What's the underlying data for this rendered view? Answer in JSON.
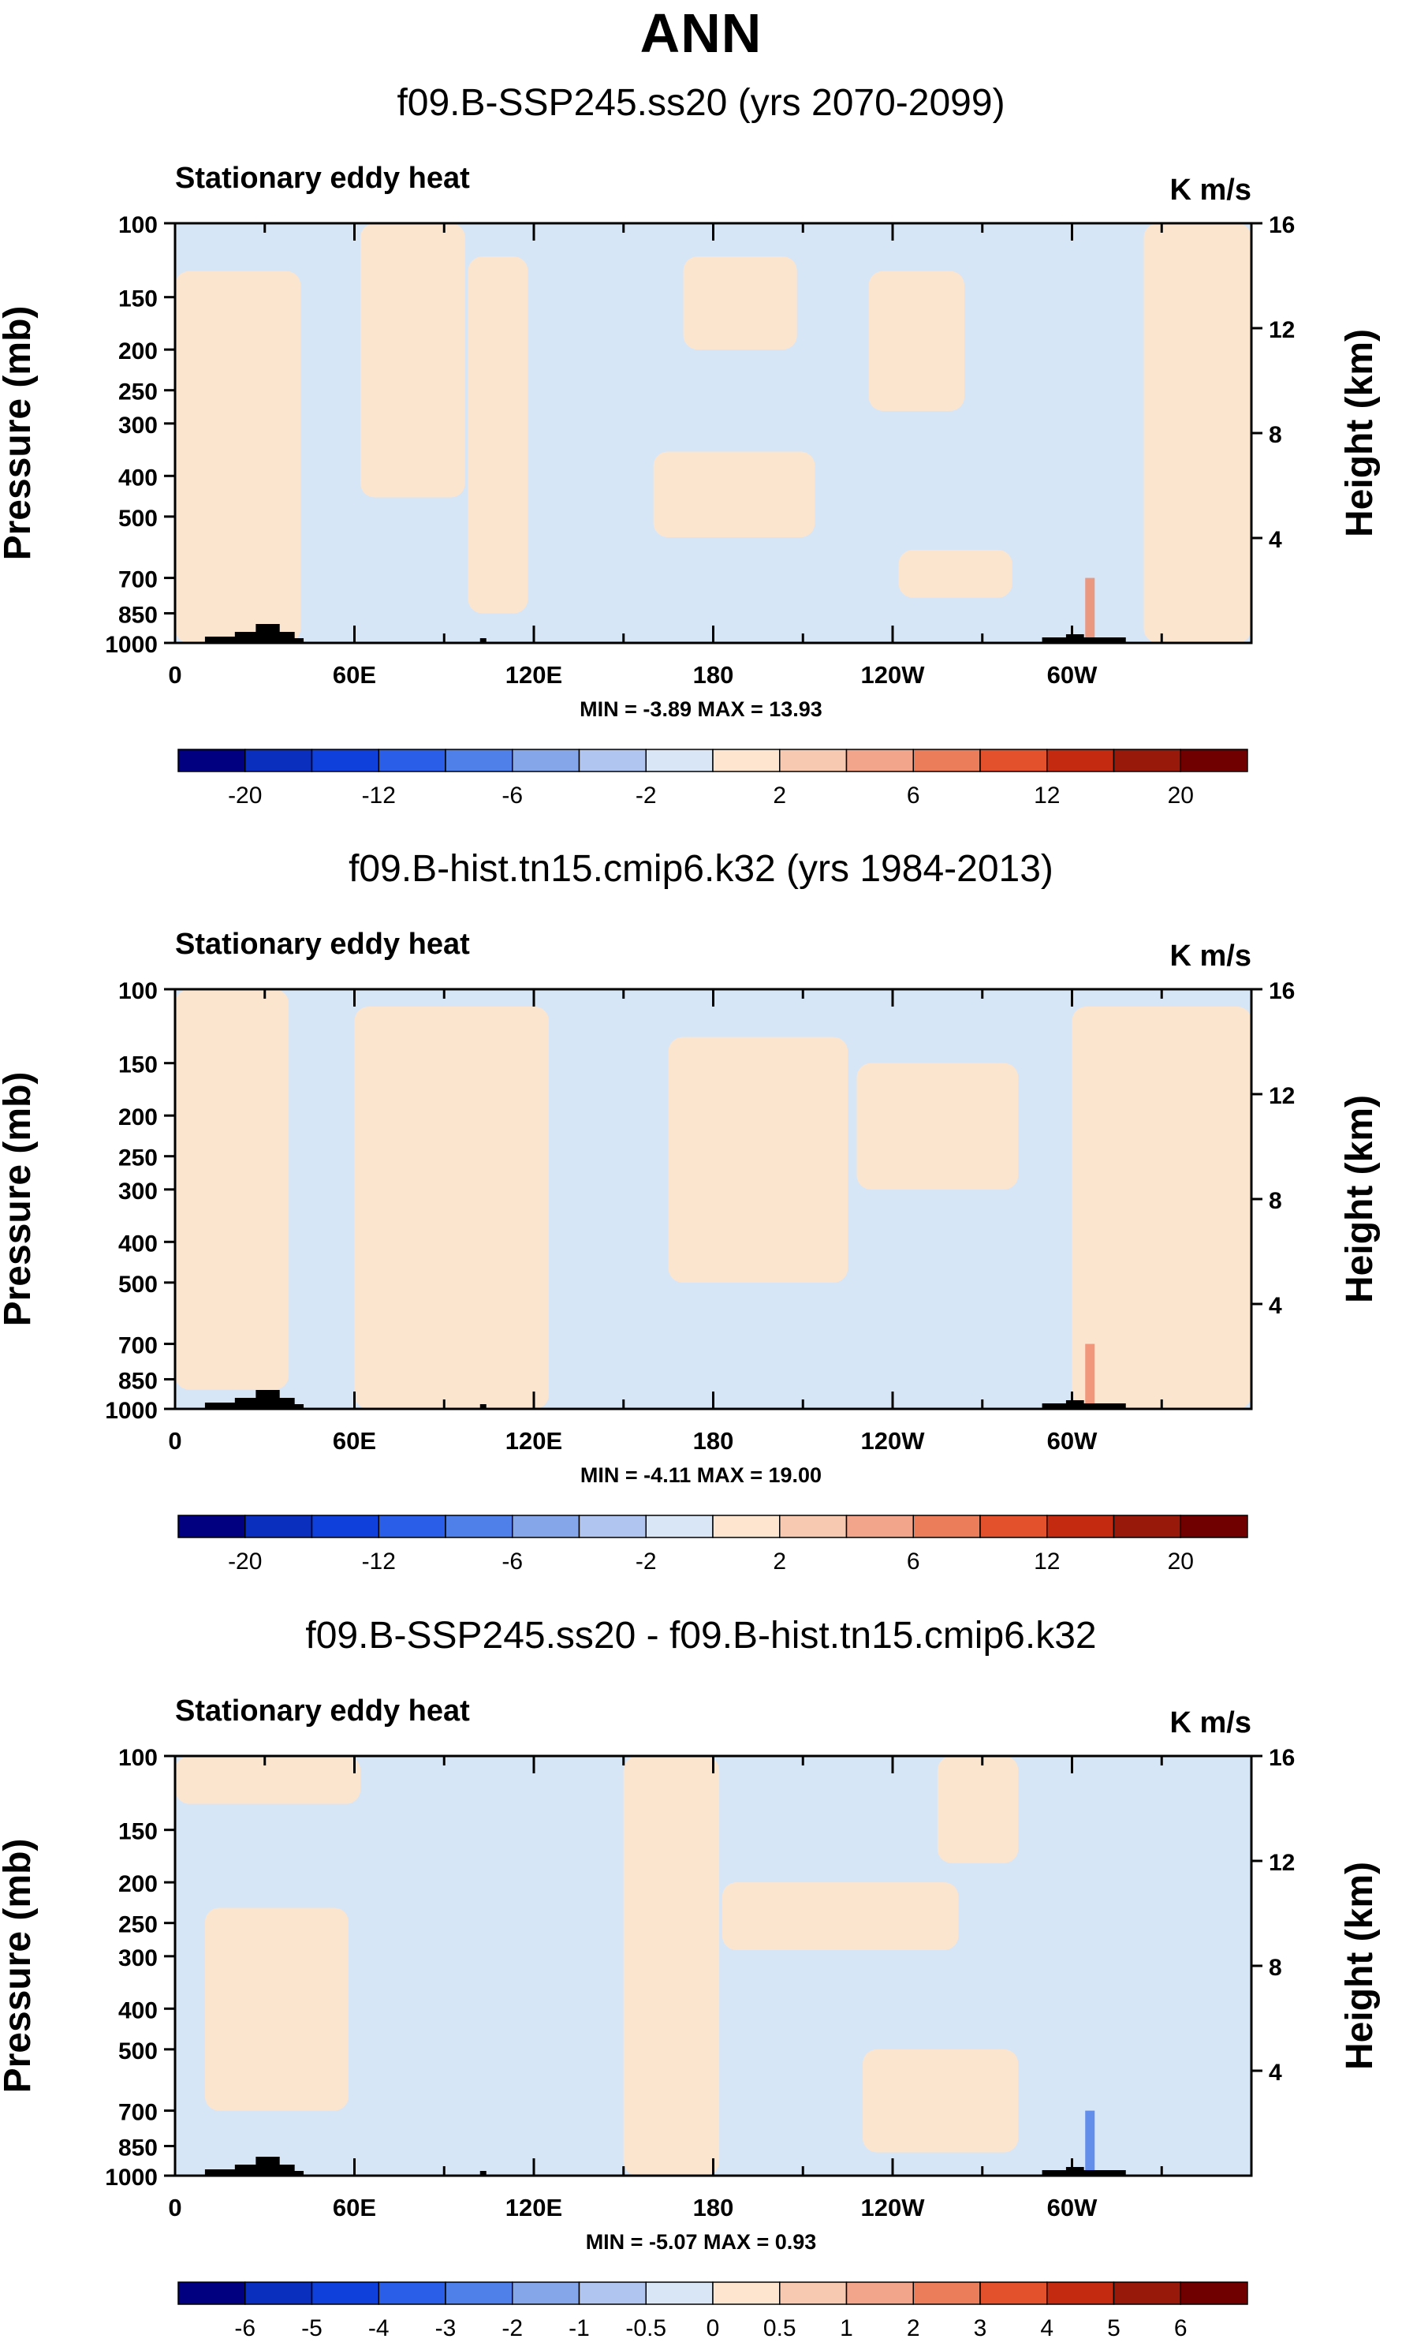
{
  "figure": {
    "title": "ANN"
  },
  "chart_data": [
    {
      "type": "heatmap",
      "title": "f09.B-SSP245.ss20 (yrs 2070-2099)",
      "subtitle": "Stationary eddy heat",
      "units": "K m/s",
      "ylabel": "Pressure (mb)",
      "ylabel_right": "Height (km)",
      "pressure_ticks": [
        100,
        150,
        200,
        250,
        300,
        400,
        500,
        700,
        850,
        1000
      ],
      "height_ticks": [
        4,
        8,
        12,
        16
      ],
      "xlim": [
        0,
        360
      ],
      "x_ticks": [
        {
          "lon": 0,
          "label": "0"
        },
        {
          "lon": 60,
          "label": "60E"
        },
        {
          "lon": 120,
          "label": "120E"
        },
        {
          "lon": 180,
          "label": "180"
        },
        {
          "lon": 240,
          "label": "120W"
        },
        {
          "lon": 300,
          "label": "60W"
        }
      ],
      "stats": "MIN = -3.89  MAX = 13.93",
      "colorbar_labels": [
        "-20",
        "-12",
        "-6",
        "-2",
        "2",
        "6",
        "12",
        "20"
      ],
      "positive_regions": [
        {
          "lon": [
            0,
            42
          ],
          "p": [
            130,
            1000
          ]
        },
        {
          "lon": [
            62,
            97
          ],
          "p": [
            100,
            450
          ]
        },
        {
          "lon": [
            98,
            118
          ],
          "p": [
            120,
            850
          ]
        },
        {
          "lon": [
            160,
            214
          ],
          "p": [
            350,
            560
          ]
        },
        {
          "lon": [
            170,
            208
          ],
          "p": [
            120,
            200
          ]
        },
        {
          "lon": [
            232,
            264
          ],
          "p": [
            130,
            280
          ]
        },
        {
          "lon": [
            242,
            280
          ],
          "p": [
            600,
            780
          ]
        },
        {
          "lon": [
            324,
            360
          ],
          "p": [
            100,
            1000
          ]
        }
      ]
    },
    {
      "type": "heatmap",
      "title": "f09.B-hist.tn15.cmip6.k32 (yrs 1984-2013)",
      "subtitle": "Stationary eddy heat",
      "units": "K m/s",
      "ylabel": "Pressure (mb)",
      "ylabel_right": "Height (km)",
      "pressure_ticks": [
        100,
        150,
        200,
        250,
        300,
        400,
        500,
        700,
        850,
        1000
      ],
      "height_ticks": [
        4,
        8,
        12,
        16
      ],
      "xlim": [
        0,
        360
      ],
      "x_ticks": [
        {
          "lon": 0,
          "label": "0"
        },
        {
          "lon": 60,
          "label": "60E"
        },
        {
          "lon": 120,
          "label": "120E"
        },
        {
          "lon": 180,
          "label": "180"
        },
        {
          "lon": 240,
          "label": "120W"
        },
        {
          "lon": 300,
          "label": "60W"
        }
      ],
      "stats": "MIN = -4.11  MAX = 19.00",
      "colorbar_labels": [
        "-20",
        "-12",
        "-6",
        "-2",
        "2",
        "6",
        "12",
        "20"
      ],
      "positive_regions": [
        {
          "lon": [
            0,
            38
          ],
          "p": [
            100,
            900
          ]
        },
        {
          "lon": [
            60,
            125
          ],
          "p": [
            110,
            1000
          ]
        },
        {
          "lon": [
            165,
            225
          ],
          "p": [
            130,
            500
          ]
        },
        {
          "lon": [
            228,
            282
          ],
          "p": [
            150,
            300
          ]
        },
        {
          "lon": [
            300,
            360
          ],
          "p": [
            110,
            1000
          ]
        }
      ]
    },
    {
      "type": "heatmap",
      "title": "f09.B-SSP245.ss20 - f09.B-hist.tn15.cmip6.k32",
      "subtitle": "Stationary eddy heat",
      "units": "K m/s",
      "ylabel": "Pressure (mb)",
      "ylabel_right": "Height (km)",
      "pressure_ticks": [
        100,
        150,
        200,
        250,
        300,
        400,
        500,
        700,
        850,
        1000
      ],
      "height_ticks": [
        4,
        8,
        12,
        16
      ],
      "xlim": [
        0,
        360
      ],
      "x_ticks": [
        {
          "lon": 0,
          "label": "0"
        },
        {
          "lon": 60,
          "label": "60E"
        },
        {
          "lon": 120,
          "label": "120E"
        },
        {
          "lon": 180,
          "label": "180"
        },
        {
          "lon": 240,
          "label": "120W"
        },
        {
          "lon": 300,
          "label": "60W"
        }
      ],
      "stats": "MIN = -5.07  MAX =  0.93",
      "colorbar_labels": [
        "-6",
        "-5",
        "-4",
        "-3",
        "-2",
        "-1",
        "-0.5",
        "0",
        "0.5",
        "1",
        "2",
        "3",
        "4",
        "5",
        "6"
      ],
      "positive_regions": [
        {
          "lon": [
            0,
            62
          ],
          "p": [
            100,
            130
          ]
        },
        {
          "lon": [
            10,
            58
          ],
          "p": [
            230,
            700
          ]
        },
        {
          "lon": [
            150,
            182
          ],
          "p": [
            100,
            1000
          ]
        },
        {
          "lon": [
            183,
            262
          ],
          "p": [
            200,
            290
          ]
        },
        {
          "lon": [
            230,
            282
          ],
          "p": [
            500,
            880
          ]
        },
        {
          "lon": [
            255,
            282
          ],
          "p": [
            100,
            180
          ]
        }
      ]
    }
  ],
  "colorbar": {
    "colors": [
      "#000080",
      "#0a2fbf",
      "#1040dc",
      "#2a5ee8",
      "#4f7fe8",
      "#86a6ea",
      "#b0c6f0",
      "#d8e6f6",
      "#fde5cf",
      "#f8c9b1",
      "#f2a58a",
      "#ec7d5a",
      "#e2502c",
      "#c42a10",
      "#98180a",
      "#700000"
    ]
  },
  "colors": {
    "positive": "#fce5cf",
    "negative": "#d6e6f6",
    "topography": "#000000",
    "strong_positive": "#ee8a6c",
    "strong_negative": "#4f7fe8"
  }
}
